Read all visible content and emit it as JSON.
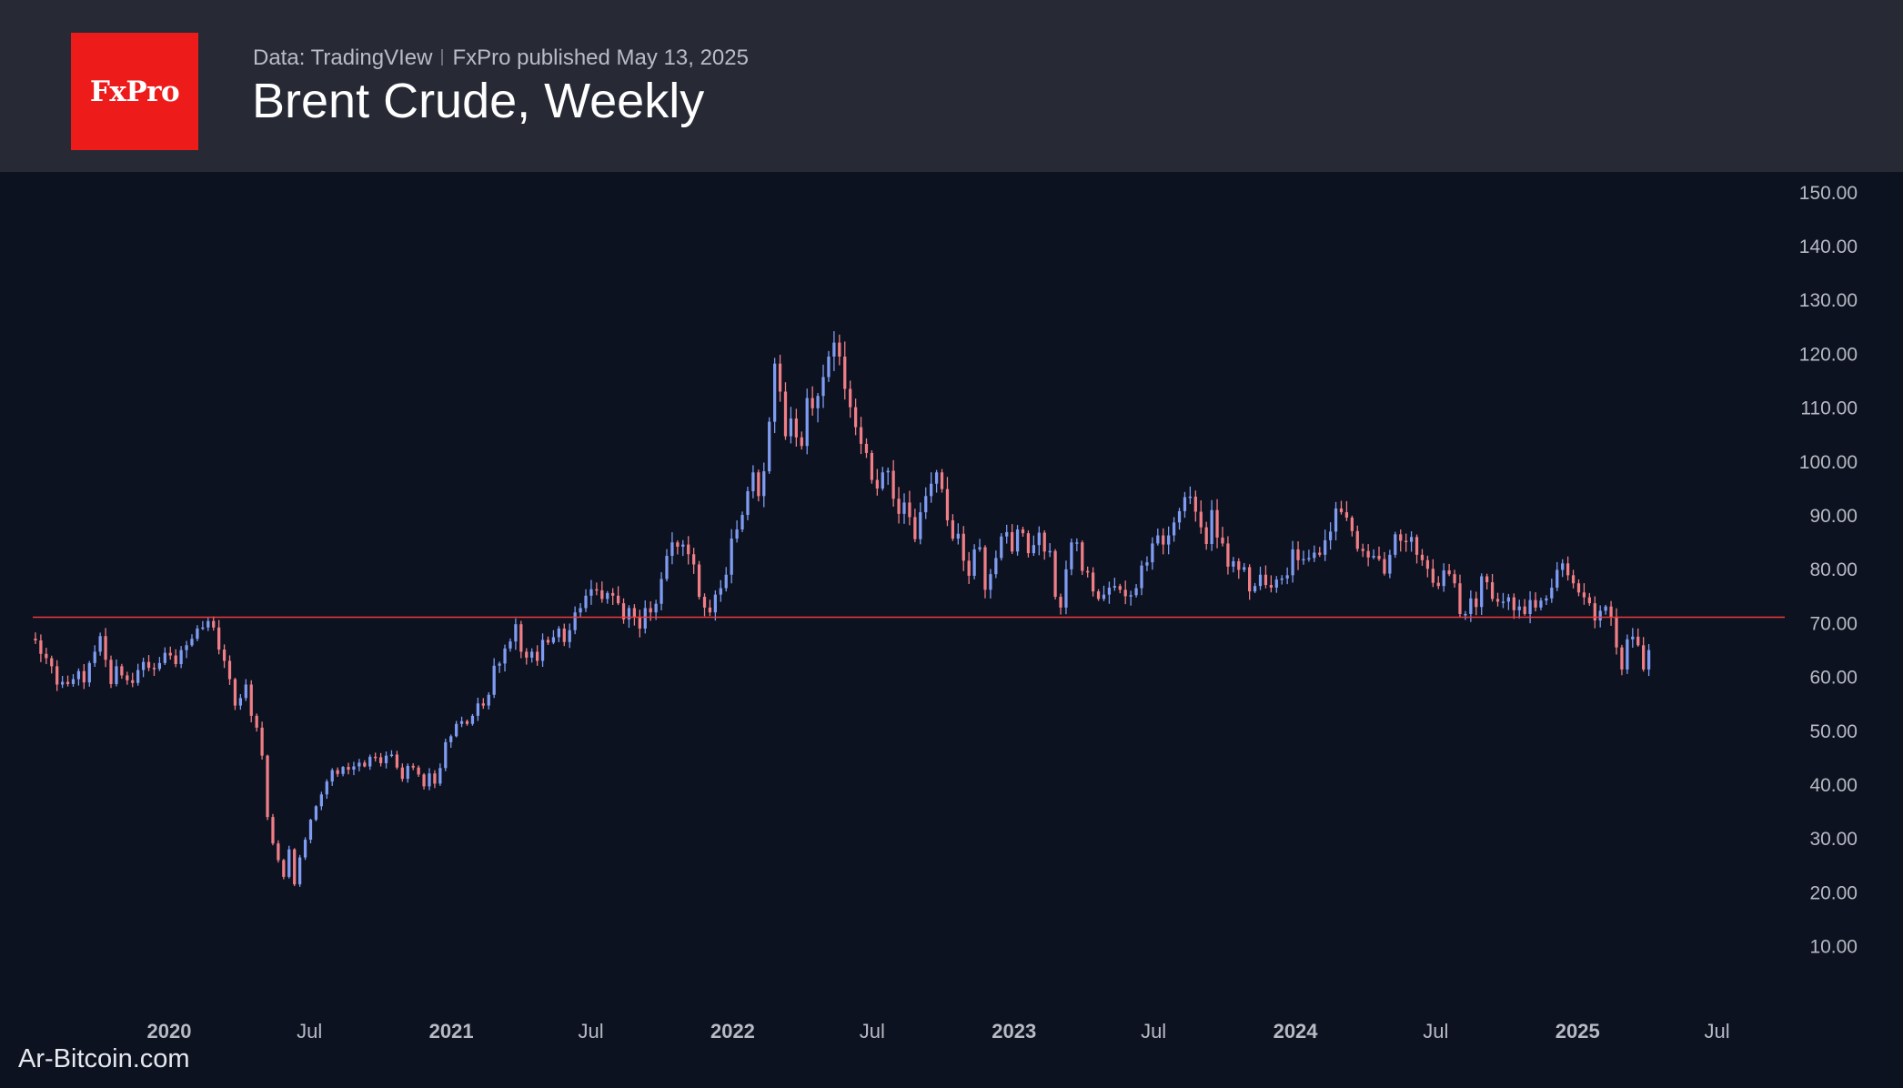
{
  "header": {
    "logo_text": "FxPro",
    "source": "Data: TradingVIew",
    "published": "FxPro published May 13, 2025",
    "title": "Brent Crude, Weekly"
  },
  "watermark": "Ar-Bitcoin.com",
  "colors": {
    "background": "#0c1220",
    "header": "#272a35",
    "logo": "#ee1b1b",
    "up": "#7f9cf2",
    "down": "#f07e86",
    "level_line": "#f03a3a",
    "axis_text": "#b7bac4"
  },
  "chart_data": {
    "type": "candlestick",
    "title": "Brent Crude, Weekly",
    "ylim": [
      2,
      152
    ],
    "yticks": [
      "10.00",
      "20.00",
      "30.00",
      "40.00",
      "50.00",
      "60.00",
      "70.00",
      "80.00",
      "90.00",
      "100.00",
      "110.00",
      "120.00",
      "130.00",
      "140.00",
      "150.00"
    ],
    "xticks": [
      {
        "label": "2020",
        "date": "2020-01-01",
        "bold": true
      },
      {
        "label": "Jul",
        "date": "2020-07-01",
        "bold": false
      },
      {
        "label": "2021",
        "date": "2021-01-01",
        "bold": true
      },
      {
        "label": "Jul",
        "date": "2021-07-01",
        "bold": false
      },
      {
        "label": "2022",
        "date": "2022-01-01",
        "bold": true
      },
      {
        "label": "Jul",
        "date": "2022-07-01",
        "bold": false
      },
      {
        "label": "2023",
        "date": "2023-01-01",
        "bold": true
      },
      {
        "label": "Jul",
        "date": "2023-07-01",
        "bold": false
      },
      {
        "label": "2024",
        "date": "2024-01-01",
        "bold": true
      },
      {
        "label": "Jul",
        "date": "2024-07-01",
        "bold": false
      },
      {
        "label": "2025",
        "date": "2025-01-01",
        "bold": true
      },
      {
        "label": "Jul",
        "date": "2025-07-01",
        "bold": false
      }
    ],
    "x_range": [
      "2019-07-08",
      "2025-07-18"
    ],
    "level_line": 71,
    "weekly_closes": {
      "start": "2019-07-08",
      "values": [
        66.7,
        64.2,
        63.4,
        61.9,
        58.5,
        59.0,
        58.6,
        59.5,
        61.0,
        58.9,
        62.5,
        64.6,
        67.5,
        63.1,
        58.6,
        61.9,
        60.2,
        59.3,
        58.8,
        61.2,
        62.7,
        61.6,
        61.4,
        62.5,
        64.4,
        63.9,
        62.3,
        64.9,
        65.8,
        67.0,
        68.9,
        69.1,
        70.3,
        69.1,
        65.0,
        62.9,
        59.5,
        54.6,
        56.0,
        58.5,
        52.7,
        50.5,
        45.3,
        33.9,
        29.0,
        25.9,
        22.8,
        27.9,
        21.4,
        26.4,
        29.7,
        33.4,
        35.9,
        38.1,
        40.5,
        42.6,
        41.9,
        43.2,
        42.7,
        43.3,
        44.0,
        43.3,
        45.1,
        45.0,
        43.9,
        45.3,
        45.5,
        43.1,
        41.0,
        43.4,
        43.1,
        41.8,
        39.6,
        42.0,
        40.1,
        43.0,
        47.8,
        48.9,
        51.2,
        51.7,
        51.2,
        52.7,
        55.0,
        54.6,
        56.6,
        62.0,
        62.4,
        65.2,
        66.5,
        69.7,
        64.6,
        63.5,
        64.6,
        62.9,
        66.8,
        66.3,
        67.3,
        68.9,
        66.4,
        68.6,
        71.9,
        72.7,
        75.0,
        76.2,
        76.0,
        74.4,
        75.5,
        75.0,
        73.6,
        70.6,
        72.7,
        71.1,
        68.9,
        72.7,
        71.9,
        73.5,
        78.1,
        82.4,
        84.9,
        84.1,
        84.5,
        82.7,
        80.8,
        74.8,
        72.8,
        71.9,
        75.2,
        76.4,
        78.9,
        85.6,
        87.3,
        90.0,
        94.4,
        97.9,
        93.5,
        98.1,
        107.3,
        118.1,
        112.9,
        104.6,
        107.9,
        104.4,
        102.8,
        111.7,
        109.8,
        112.1,
        115.6,
        119.4,
        122.0,
        119.4,
        113.4,
        110.0,
        106.3,
        103.2,
        101.5,
        96.5,
        94.9,
        97.9,
        98.2,
        93.0,
        90.2,
        92.3,
        89.6,
        85.5,
        90.5,
        93.5,
        95.8,
        97.9,
        94.8,
        89.0,
        85.6,
        86.5,
        81.5,
        78.7,
        83.6,
        84.0,
        76.1,
        79.0,
        82.0,
        86.0,
        86.8,
        83.2,
        87.3,
        86.6,
        82.9,
        84.4,
        86.7,
        83.2,
        83.3,
        74.8,
        72.8,
        79.9,
        84.9,
        84.9,
        79.6,
        79.3,
        75.8,
        74.4,
        75.2,
        76.5,
        76.8,
        76.1,
        74.9,
        75.1,
        76.4,
        80.6,
        81.2,
        84.7,
        86.2,
        84.5,
        86.2,
        88.6,
        90.7,
        93.3,
        93.4,
        90.6,
        87.7,
        84.6,
        90.9,
        85.8,
        84.7,
        80.4,
        81.4,
        79.8,
        80.3,
        75.8,
        76.8,
        78.9,
        77.0,
        76.5,
        78.0,
        78.2,
        78.8,
        83.6,
        81.6,
        81.8,
        82.0,
        83.0,
        82.6,
        85.3,
        86.9,
        91.2,
        90.5,
        89.5,
        87.0,
        83.7,
        83.3,
        82.1,
        82.4,
        81.8,
        79.1,
        82.6,
        86.4,
        85.2,
        85.0,
        85.9,
        82.6,
        81.6,
        80.0,
        77.4,
        76.8,
        79.7,
        79.0,
        77.3,
        71.6,
        71.6,
        74.5,
        72.9,
        78.6,
        77.5,
        74.4,
        73.9,
        73.9,
        74.7,
        72.3,
        73.0,
        71.6,
        74.2,
        72.8,
        74.1,
        74.5,
        76.5,
        79.8,
        81.0,
        78.8,
        77.3,
        75.6,
        74.7,
        73.6,
        70.4,
        72.2,
        73.0,
        71.1,
        65.4,
        61.3,
        66.9,
        67.4,
        65.8,
        61.3,
        64.9
      ]
    }
  }
}
